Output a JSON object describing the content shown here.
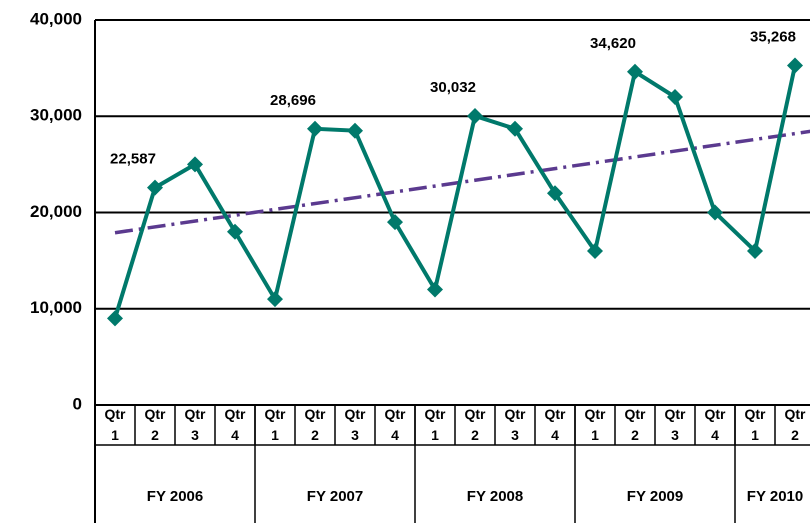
{
  "chart_data": {
    "type": "line",
    "categories": [
      "Qtr 1",
      "Qtr 2",
      "Qtr 3",
      "Qtr 4",
      "Qtr 1",
      "Qtr 2",
      "Qtr 3",
      "Qtr 4",
      "Qtr 1",
      "Qtr 2",
      "Qtr 3",
      "Qtr 4",
      "Qtr 1",
      "Qtr 2",
      "Qtr 3",
      "Qtr 4",
      "Qtr 1",
      "Qtr 2"
    ],
    "groups": [
      {
        "label": "FY 2006",
        "span": 4
      },
      {
        "label": "FY 2007",
        "span": 4
      },
      {
        "label": "FY 2008",
        "span": 4
      },
      {
        "label": "FY 2009",
        "span": 4
      },
      {
        "label": "FY 2010",
        "span": 2
      }
    ],
    "series": [
      {
        "color": "#00796b",
        "values": [
          9000,
          22587,
          25000,
          18000,
          11000,
          28696,
          28500,
          19000,
          12000,
          30032,
          28700,
          22000,
          16000,
          34620,
          32000,
          20000,
          16000,
          35268
        ],
        "value_labels": [
          null,
          "22,587",
          null,
          null,
          null,
          "28,696",
          null,
          null,
          null,
          "30,032",
          null,
          null,
          null,
          "34,620",
          null,
          null,
          null,
          "35,268"
        ]
      }
    ],
    "trend": {
      "color": "#5b3a8f",
      "values": [
        17900,
        28500
      ]
    },
    "ylim": [
      0,
      40000
    ],
    "yticks": [
      0,
      {
        "value": 10000,
        "label": "10,000"
      },
      {
        "value": 20000,
        "label": "20,000"
      },
      {
        "value": 30000,
        "label": "30,000"
      },
      {
        "value": 40000,
        "label": "40,000"
      }
    ],
    "grid": true
  }
}
